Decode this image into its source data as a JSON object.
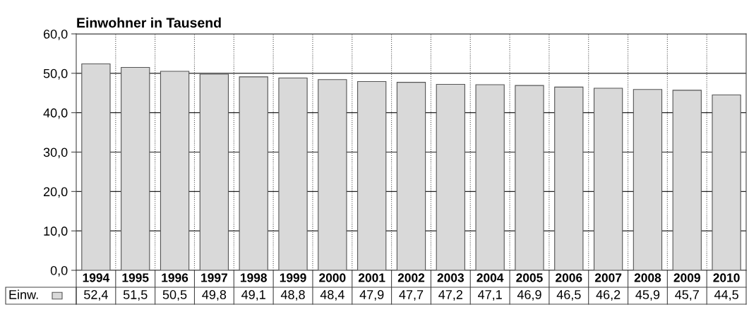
{
  "chart_data": {
    "type": "bar",
    "title": "Einwohner in Tausend",
    "categories": [
      "1994",
      "1995",
      "1996",
      "1997",
      "1998",
      "1999",
      "2000",
      "2001",
      "2002",
      "2003",
      "2004",
      "2005",
      "2006",
      "2007",
      "2008",
      "2009",
      "2010"
    ],
    "series": [
      {
        "name": "Einw.",
        "color": "#d9d9d9",
        "values": [
          52.4,
          51.5,
          50.5,
          49.8,
          49.1,
          48.8,
          48.4,
          47.9,
          47.7,
          47.2,
          47.1,
          46.9,
          46.5,
          46.2,
          45.9,
          45.7,
          44.5
        ],
        "value_labels": [
          "52,4",
          "51,5",
          "50,5",
          "49,8",
          "49,1",
          "48,8",
          "48,4",
          "47,9",
          "47,7",
          "47,2",
          "47,1",
          "46,9",
          "46,5",
          "46,2",
          "45,9",
          "45,7",
          "44,5"
        ]
      }
    ],
    "ylim": [
      0,
      60
    ],
    "yticks": [
      {
        "value": 0,
        "label": "0,0"
      },
      {
        "value": 10,
        "label": "10,0"
      },
      {
        "value": 20,
        "label": "20,0"
      },
      {
        "value": 30,
        "label": "30,0"
      },
      {
        "value": 40,
        "label": "40,0"
      },
      {
        "value": 50,
        "label": "50,0"
      },
      {
        "value": 60,
        "label": "60,0"
      }
    ],
    "grid": true,
    "legend": "bottom"
  }
}
